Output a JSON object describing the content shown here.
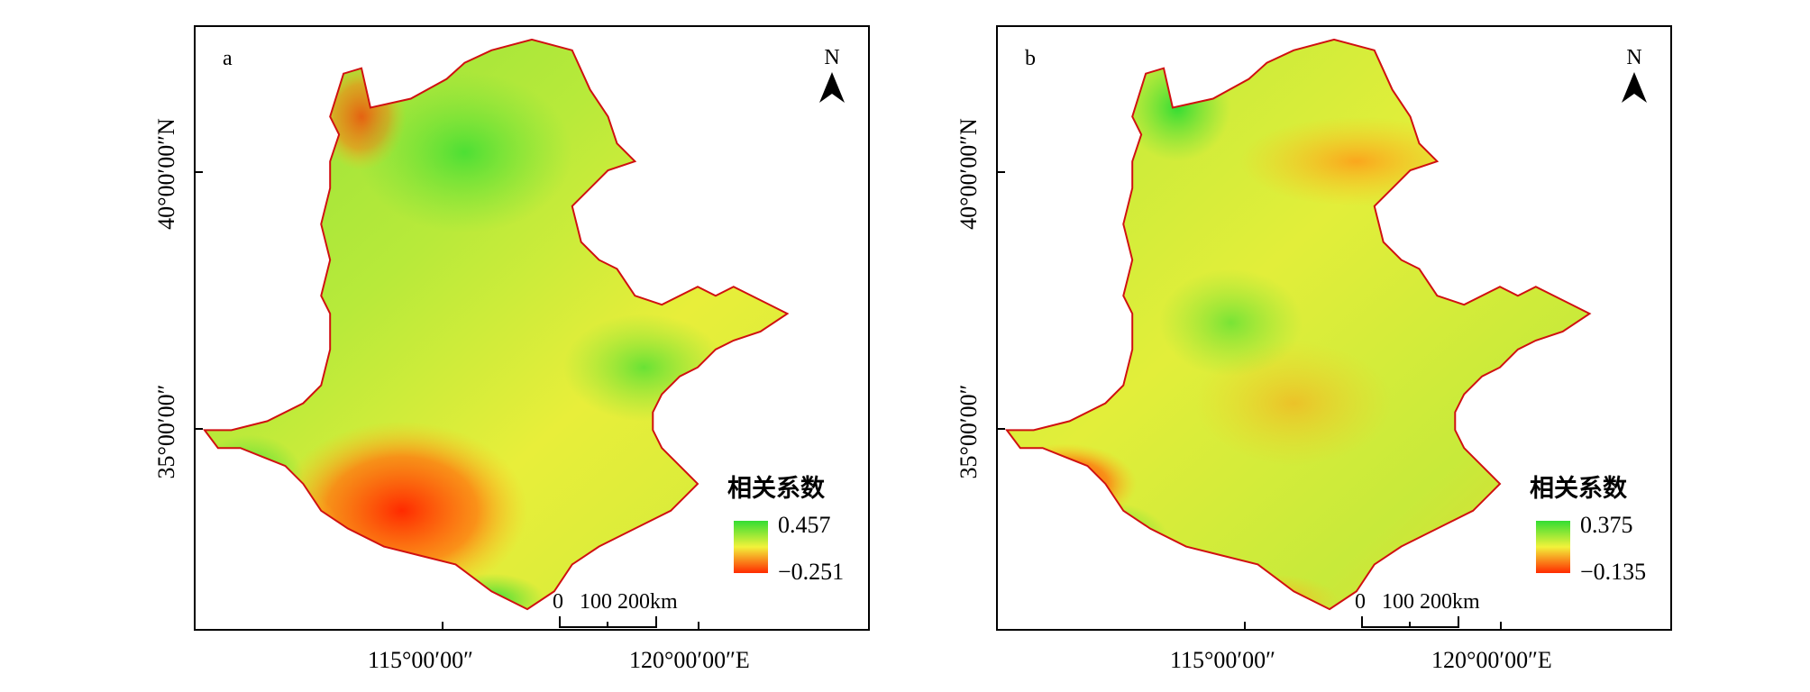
{
  "panels": [
    {
      "label": "a",
      "north_label": "N",
      "legend": {
        "title": "相关系数",
        "max": "0.457",
        "min": "−0.251",
        "max_color": "#33dd33",
        "min_color": "#ff2a00"
      },
      "scale": {
        "labels": [
          "0",
          "100",
          "200km"
        ]
      },
      "lat_labels": [
        "40°00′00″N",
        "35°00′00″"
      ],
      "lon_labels": [
        "115°00′00″",
        "120°00′00″E"
      ]
    },
    {
      "label": "b",
      "north_label": "N",
      "legend": {
        "title": "相关系数",
        "max": "0.375",
        "min": "−0.135",
        "max_color": "#33dd33",
        "min_color": "#ff2a00"
      },
      "scale": {
        "labels": [
          "0",
          "100",
          "200km"
        ]
      },
      "lat_labels": [
        "40°00′00″N",
        "35°00′00″"
      ],
      "lon_labels": [
        "115°00′00″",
        "120°00′00″E"
      ]
    }
  ],
  "colors": {
    "high": "#33dd33",
    "mid": "#f2f23a",
    "low": "#ff2a00",
    "border": "#000000"
  }
}
